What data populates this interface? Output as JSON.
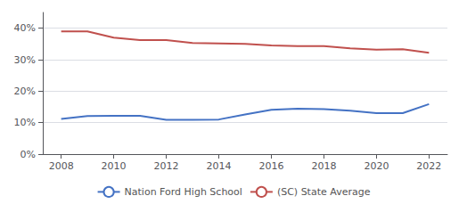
{
  "chart_data": {
    "type": "line",
    "x": [
      2008,
      2009,
      2010,
      2011,
      2012,
      2013,
      2014,
      2015,
      2016,
      2017,
      2018,
      2019,
      2020,
      2021,
      2022
    ],
    "series": [
      {
        "name": "Nation Ford High School",
        "color": "#4472C4",
        "values": [
          0.112,
          0.121,
          0.122,
          0.122,
          0.109,
          0.109,
          0.11,
          0.126,
          0.141,
          0.144,
          0.143,
          0.138,
          0.13,
          0.13,
          0.159
        ]
      },
      {
        "name": "(SC) State Average",
        "color": "#C0504D",
        "values": [
          0.39,
          0.39,
          0.37,
          0.362,
          0.362,
          0.353,
          0.352,
          0.35,
          0.345,
          0.343,
          0.343,
          0.336,
          0.332,
          0.333,
          0.322
        ]
      }
    ],
    "xlim": [
      2007.3,
      2022.7
    ],
    "xticks": [
      2008,
      2010,
      2012,
      2014,
      2016,
      2018,
      2020,
      2022
    ],
    "ylim": [
      0,
      0.45
    ],
    "yticks": [
      {
        "value": 0.0,
        "label": "0%"
      },
      {
        "value": 0.1,
        "label": "10%"
      },
      {
        "value": 0.2,
        "label": "20%"
      },
      {
        "value": 0.3,
        "label": "30%"
      },
      {
        "value": 0.4,
        "label": "40%"
      }
    ],
    "grid": true,
    "legend": "bottom"
  }
}
